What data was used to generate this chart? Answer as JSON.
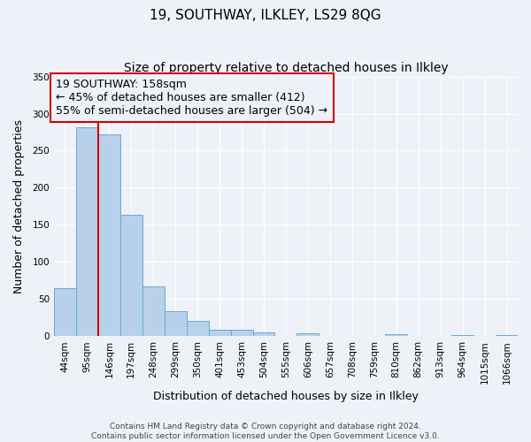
{
  "title": "19, SOUTHWAY, ILKLEY, LS29 8QG",
  "subtitle": "Size of property relative to detached houses in Ilkley",
  "xlabel": "Distribution of detached houses by size in Ilkley",
  "ylabel": "Number of detached properties",
  "bar_labels": [
    "44sqm",
    "95sqm",
    "146sqm",
    "197sqm",
    "248sqm",
    "299sqm",
    "350sqm",
    "401sqm",
    "453sqm",
    "504sqm",
    "555sqm",
    "606sqm",
    "657sqm",
    "708sqm",
    "759sqm",
    "810sqm",
    "862sqm",
    "913sqm",
    "964sqm",
    "1015sqm",
    "1066sqm"
  ],
  "bar_values": [
    65,
    281,
    272,
    163,
    67,
    34,
    20,
    9,
    9,
    5,
    0,
    4,
    0,
    0,
    0,
    3,
    0,
    0,
    2,
    0,
    2
  ],
  "bar_color": "#b8d0ea",
  "bar_edge_color": "#6aaad4",
  "vline_x": 1.5,
  "vline_color": "#cc0000",
  "annotation_lines": [
    "19 SOUTHWAY: 158sqm",
    "← 45% of detached houses are smaller (412)",
    "55% of semi-detached houses are larger (504) →"
  ],
  "box_color": "#cc0000",
  "ylim": [
    0,
    350
  ],
  "yticks": [
    0,
    50,
    100,
    150,
    200,
    250,
    300,
    350
  ],
  "background_color": "#eef2f8",
  "footer_lines": [
    "Contains HM Land Registry data © Crown copyright and database right 2024.",
    "Contains public sector information licensed under the Open Government Licence v3.0."
  ],
  "title_fontsize": 11,
  "subtitle_fontsize": 10,
  "axis_label_fontsize": 9,
  "tick_fontsize": 7.5,
  "annotation_fontsize": 9,
  "footer_fontsize": 6.5
}
